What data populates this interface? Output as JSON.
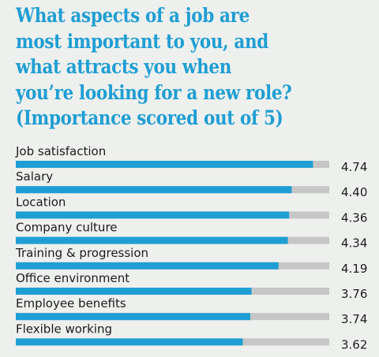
{
  "chart_data": {
    "type": "bar",
    "orientation": "horizontal",
    "title_lines": [
      "What aspects of a job are",
      "most important to you, and",
      "what attracts you when",
      "you’re looking for a new role?",
      "(Importance scored out of 5)"
    ],
    "categories": [
      "Job satisfaction",
      "Salary",
      "Location",
      "Company culture",
      "Training & progression",
      "Office environment",
      "Employee benefits",
      "Flexible working"
    ],
    "values": [
      4.74,
      4.4,
      4.36,
      4.34,
      4.19,
      3.76,
      3.74,
      3.62
    ],
    "value_labels": [
      "4.74",
      "4.40",
      "4.36",
      "4.34",
      "4.19",
      "3.76",
      "3.74",
      "3.62"
    ],
    "xlim": [
      0,
      5
    ],
    "colors": {
      "bar": "#1f9ed3",
      "track": "#c6c6c6",
      "title": "#1f9ed3",
      "background": "#eef0ee"
    },
    "grid": false,
    "legend": "none"
  }
}
